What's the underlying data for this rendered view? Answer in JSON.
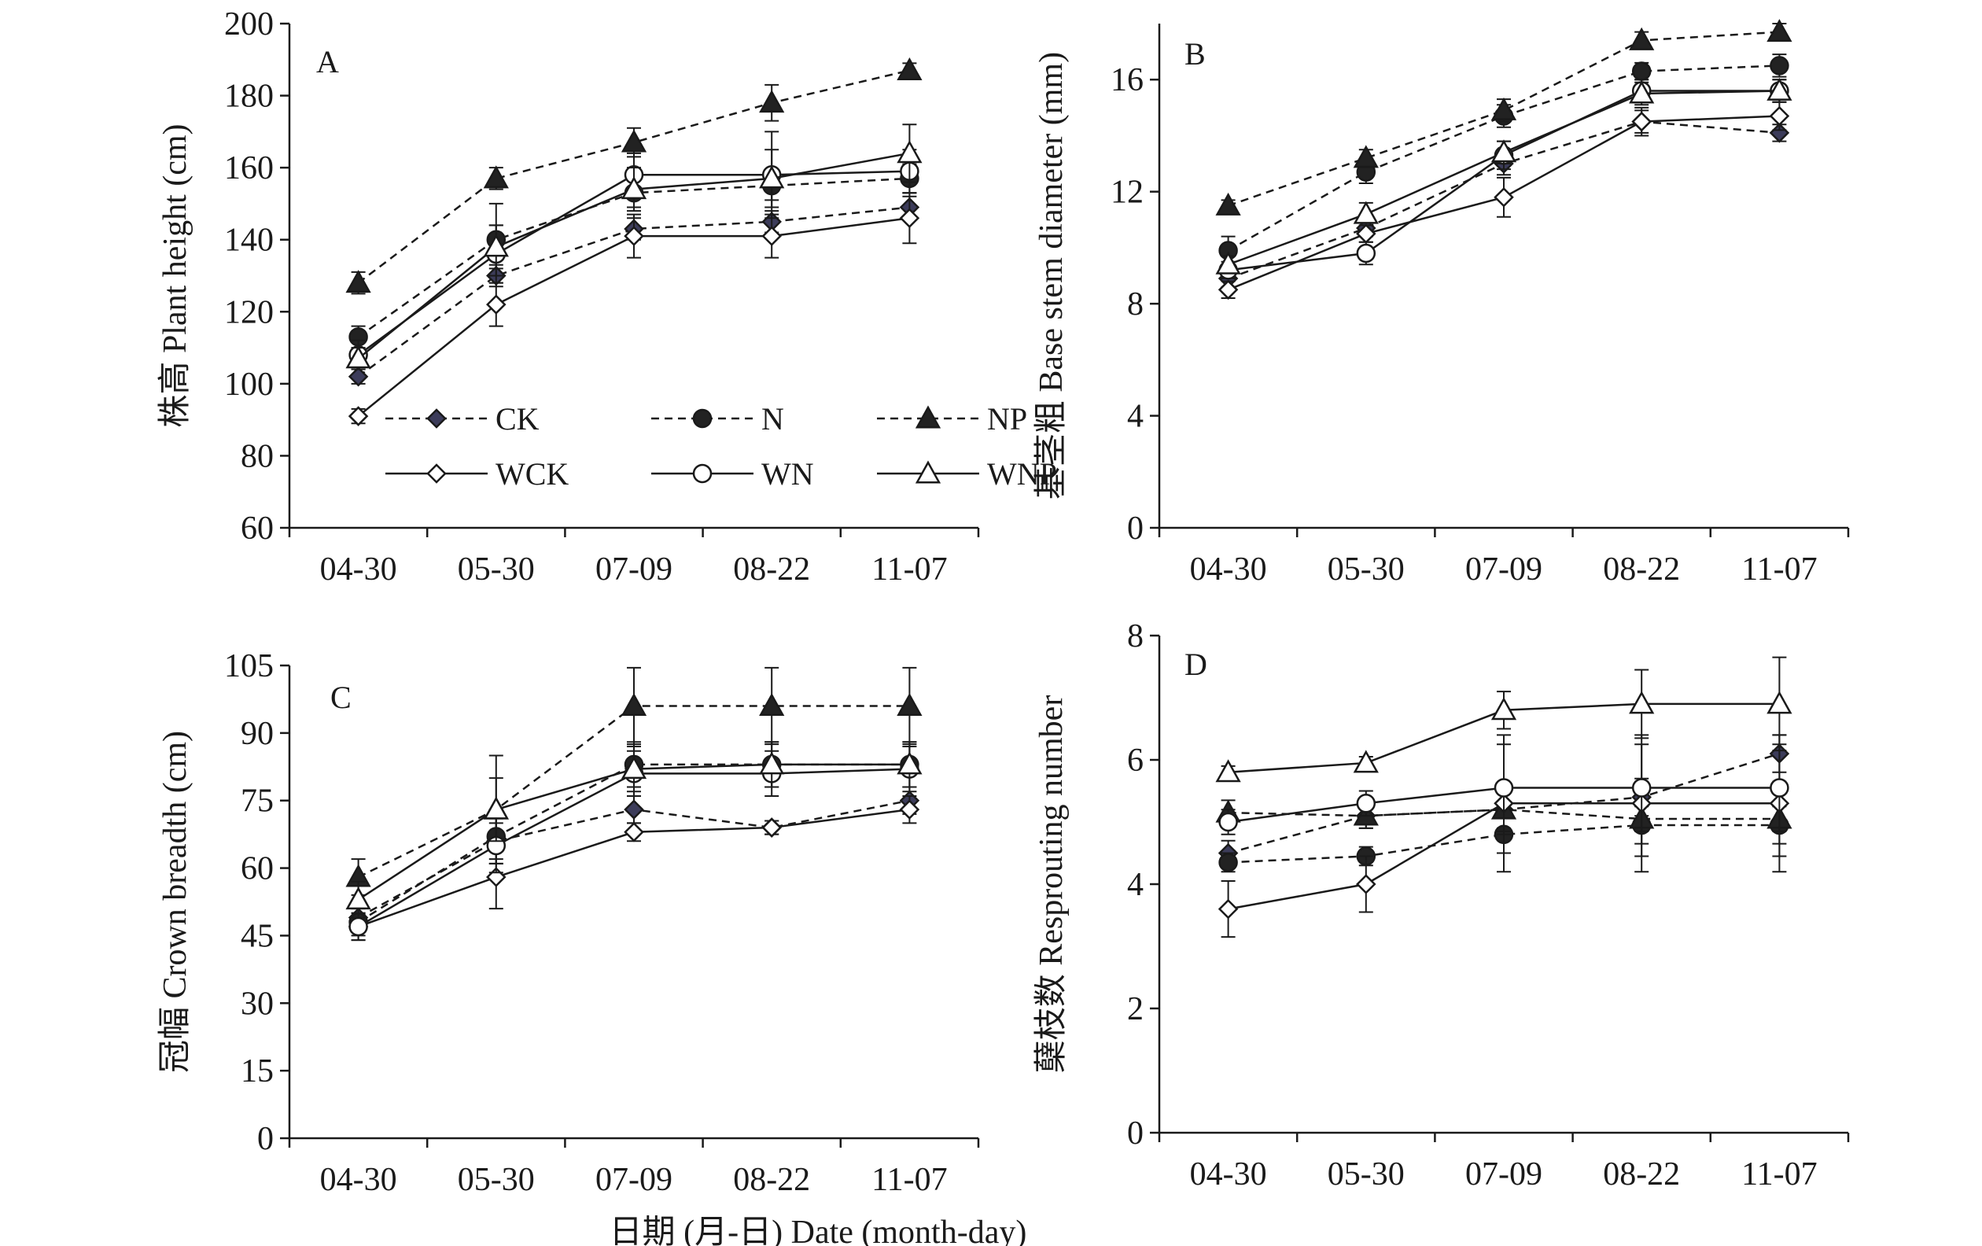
{
  "xlabel": "日期 (月-日) Date (month-day)",
  "categories": [
    "04-30",
    "05-30",
    "07-09",
    "08-22",
    "11-07"
  ],
  "series_styles": {
    "CK": {
      "marker": "diamond-filled",
      "dash": true,
      "fill": "#3c3c5a"
    },
    "N": {
      "marker": "circle-filled",
      "dash": true,
      "fill": "#222222"
    },
    "NP": {
      "marker": "triangle-filled",
      "dash": true,
      "fill": "#222222"
    },
    "WCK": {
      "marker": "diamond-open",
      "dash": false,
      "fill": "#ffffff"
    },
    "WN": {
      "marker": "circle-open",
      "dash": false,
      "fill": "#ffffff"
    },
    "WNP": {
      "marker": "triangle-open",
      "dash": false,
      "fill": "#ffffff"
    }
  },
  "legend": [
    "CK",
    "N",
    "NP",
    "WCK",
    "WN",
    "WNP"
  ],
  "chart_data": [
    {
      "type": "line",
      "panel": "A",
      "ylabel": "株高 Plant height (cm)",
      "ylim": [
        60,
        200
      ],
      "yticks": [
        60,
        80,
        100,
        120,
        140,
        160,
        180,
        200
      ],
      "legend_placement": "bottom-right inside",
      "series": [
        {
          "name": "CK",
          "values": [
            102,
            130,
            143,
            145,
            149
          ],
          "err": [
            2,
            3,
            3,
            3,
            3
          ]
        },
        {
          "name": "N",
          "values": [
            113,
            140,
            153,
            155,
            157
          ],
          "err": [
            3,
            10,
            4,
            4,
            4
          ]
        },
        {
          "name": "NP",
          "values": [
            128,
            157,
            167,
            178,
            187
          ],
          "err": [
            3,
            3,
            4,
            5,
            2
          ]
        },
        {
          "name": "WCK",
          "values": [
            91,
            122,
            141,
            141,
            146
          ],
          "err": [
            2,
            6,
            6,
            6,
            7
          ]
        },
        {
          "name": "WN",
          "values": [
            108,
            136,
            158,
            158,
            159
          ],
          "err": [
            4,
            8,
            6,
            12,
            6
          ]
        },
        {
          "name": "WNP",
          "values": [
            107,
            138,
            154,
            157,
            164
          ],
          "err": [
            3,
            6,
            6,
            8,
            8
          ]
        }
      ]
    },
    {
      "type": "line",
      "panel": "B",
      "ylabel": "基茎粗 Base stem diameter (mm)",
      "ylim": [
        0,
        18
      ],
      "yticks": [
        0,
        4,
        8,
        12,
        16
      ],
      "series": [
        {
          "name": "CK",
          "values": [
            8.9,
            10.7,
            13.0,
            14.5,
            14.1
          ],
          "err": [
            0.3,
            0.3,
            0.4,
            0.4,
            0.3
          ]
        },
        {
          "name": "N",
          "values": [
            9.9,
            12.7,
            14.7,
            16.3,
            16.5
          ],
          "err": [
            0.5,
            0.4,
            0.4,
            0.3,
            0.4
          ]
        },
        {
          "name": "NP",
          "values": [
            11.5,
            13.2,
            14.9,
            17.4,
            17.7
          ],
          "err": [
            0.2,
            0.3,
            0.4,
            0.3,
            0.3
          ]
        },
        {
          "name": "WCK",
          "values": [
            8.5,
            10.5,
            11.8,
            14.5,
            14.7
          ],
          "err": [
            0.3,
            0.3,
            0.7,
            0.5,
            0.5
          ]
        },
        {
          "name": "WN",
          "values": [
            9.2,
            9.8,
            13.3,
            15.6,
            15.6
          ],
          "err": [
            0.3,
            0.4,
            0.5,
            0.4,
            0.4
          ]
        },
        {
          "name": "WNP",
          "values": [
            9.4,
            11.2,
            13.4,
            15.5,
            15.6
          ],
          "err": [
            0.3,
            0.4,
            0.4,
            0.4,
            0.4
          ]
        }
      ]
    },
    {
      "type": "line",
      "panel": "C",
      "ylabel": "冠幅 Crown breadth (cm)",
      "ylim": [
        0,
        105
      ],
      "yticks": [
        0,
        15,
        30,
        45,
        60,
        75,
        90,
        105
      ],
      "series": [
        {
          "name": "CK",
          "values": [
            49,
            66,
            73,
            69,
            75
          ],
          "err": [
            3,
            4,
            3,
            1.5,
            3
          ]
        },
        {
          "name": "N",
          "values": [
            48,
            67,
            83,
            83,
            83
          ],
          "err": [
            3,
            6,
            5,
            5,
            5
          ]
        },
        {
          "name": "NP",
          "values": [
            58,
            73,
            96,
            96,
            96
          ],
          "err": [
            4,
            12,
            8.5,
            8.5,
            8.5
          ]
        },
        {
          "name": "WCK",
          "values": [
            47,
            58,
            68,
            69,
            73
          ],
          "err": [
            3,
            7,
            2,
            1.5,
            3
          ]
        },
        {
          "name": "WN",
          "values": [
            47,
            65,
            81,
            81,
            82
          ],
          "err": [
            3,
            6,
            5,
            5,
            5
          ]
        },
        {
          "name": "WNP",
          "values": [
            53,
            73,
            82,
            83,
            83
          ],
          "err": [
            4,
            7,
            5,
            5,
            5
          ]
        }
      ]
    },
    {
      "type": "line",
      "panel": "D",
      "ylabel": "蘖枝数 Resprouting number",
      "ylim": [
        0,
        8
      ],
      "yticks": [
        0,
        2,
        4,
        6,
        8
      ],
      "series": [
        {
          "name": "CK",
          "values": [
            4.5,
            5.1,
            5.2,
            5.4,
            6.1
          ],
          "err": [
            0.2,
            0.2,
            0.3,
            0.3,
            0.3
          ]
        },
        {
          "name": "N",
          "values": [
            4.35,
            4.45,
            4.8,
            4.95,
            4.95
          ],
          "err": [
            0.15,
            0.15,
            0.3,
            0.3,
            0.3
          ]
        },
        {
          "name": "NP",
          "values": [
            5.15,
            5.1,
            5.2,
            5.05,
            5.05
          ],
          "err": [
            0.2,
            0.2,
            0.4,
            0.6,
            0.6
          ]
        },
        {
          "name": "WCK",
          "values": [
            3.6,
            4.0,
            5.3,
            5.3,
            5.3
          ],
          "err": [
            0.45,
            0.45,
            1.1,
            1.1,
            1.1
          ]
        },
        {
          "name": "WN",
          "values": [
            5.0,
            5.3,
            5.55,
            5.55,
            5.55
          ],
          "err": [
            0.2,
            0.2,
            0.7,
            0.7,
            0.7
          ]
        },
        {
          "name": "WNP",
          "values": [
            5.8,
            5.95,
            6.8,
            6.9,
            6.9
          ],
          "err": [
            0.1,
            0.1,
            0.3,
            0.55,
            0.75
          ]
        }
      ]
    }
  ]
}
